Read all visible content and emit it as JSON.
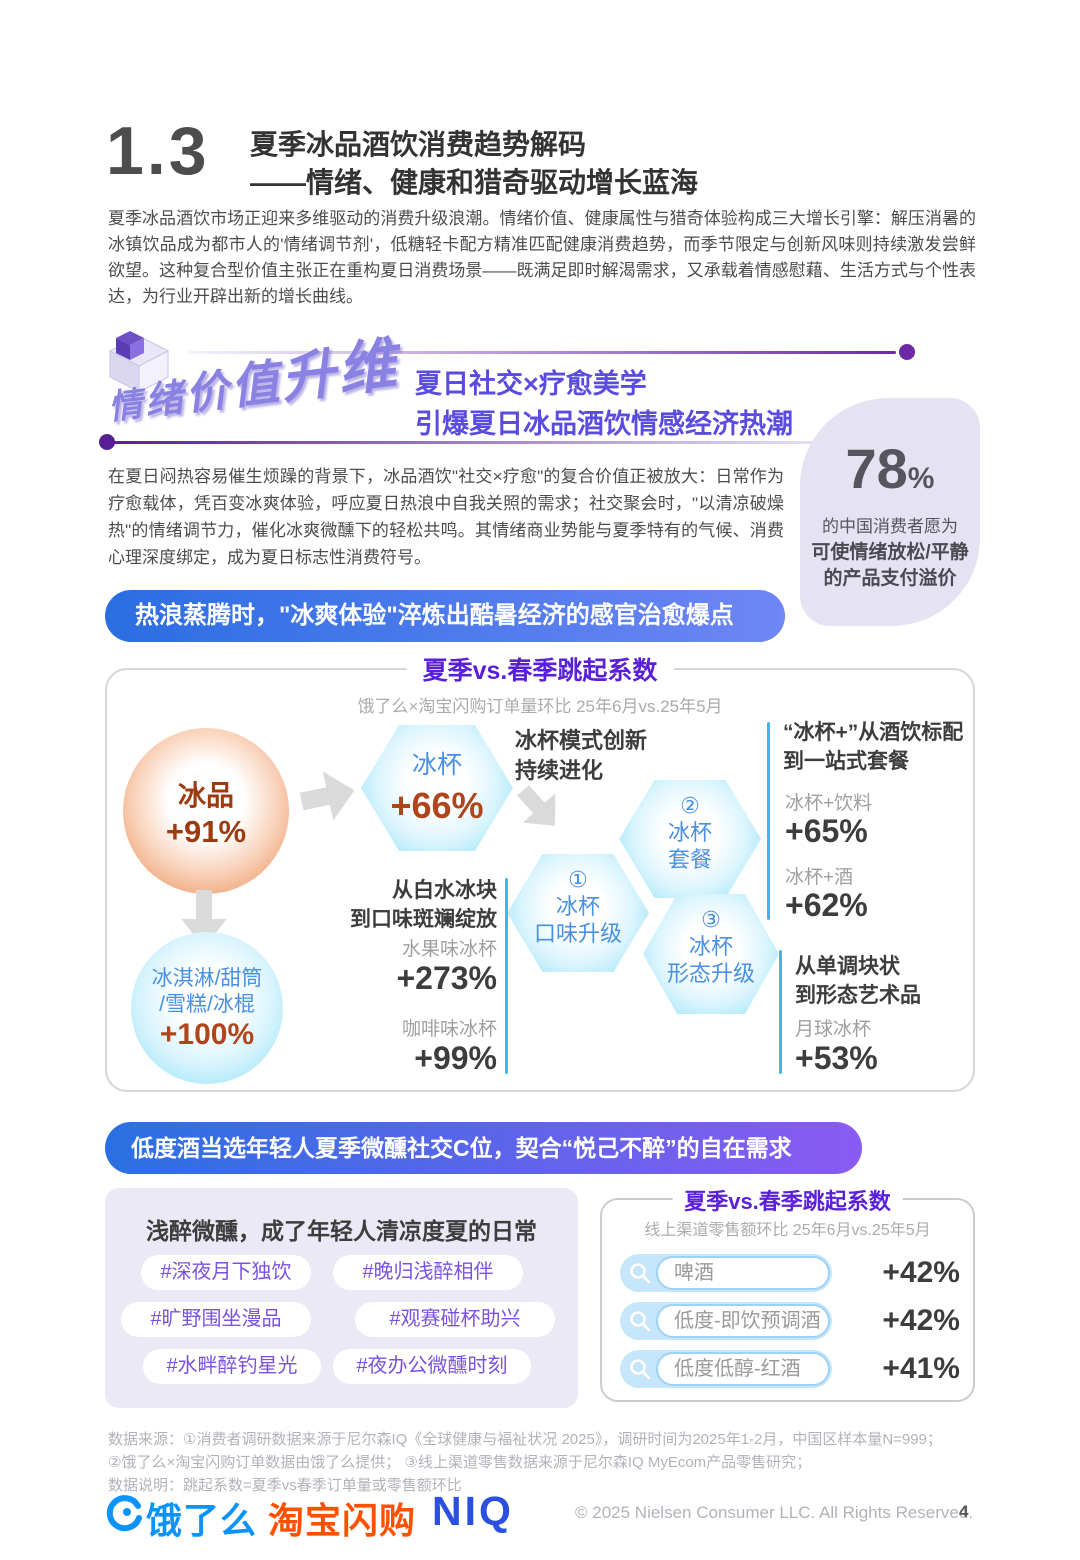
{
  "header": {
    "section_no": "1.3",
    "title_line1": "夏季冰品酒饮消费趋势解码",
    "title_line2": "——情绪、健康和猎奇驱动增长蓝海",
    "intro": "夏季冰品酒饮市场正迎来多维驱动的消费升级浪潮。情绪价值、健康属性与猎奇体验构成三大增长引擎：解压消暑的冰镇饮品成为都市人的'情绪调节剂'，低糖轻卡配方精准匹配健康消费趋势，而季节限定与创新风味则持续激发尝鲜欲望。这种复合型价值主张正在重构夏日消费场景——既满足即时解渴需求，又承载着情感慰藉、生活方式与个性表达，为行业开辟出新的增长曲线。"
  },
  "emotion_section": {
    "badge": "情绪价值升维",
    "subtitle_line1": "夏日社交×疗愈美学",
    "subtitle_line2": "引爆夏日冰品酒饮情感经济热潮",
    "body": "在夏日闷热容易催生烦躁的背景下，冰品酒饮\"社交×疗愈\"的复合价值正被放大：日常作为疗愈载体，凭百变冰爽体验，呼应夏日热浪中自我关照的需求；社交聚会时，\"以清凉破燥热\"的情绪调节力，催化冰爽微醺下的轻松共鸣。其情绪商业势能与夏季特有的气候、消费心理深度绑定，成为夏日标志性消费符号。",
    "stat": {
      "value": "78",
      "unit": "%",
      "line1": "的中国消费者愿为",
      "line2": "可使情绪放松/平静",
      "line3": "的产品支付溢价"
    }
  },
  "banner1": "热浪蒸腾时，\"冰爽体验\"淬炼出酷暑经济的感官治愈爆点",
  "jump_chart": {
    "title": "夏季vs.春季跳起系数",
    "subtitle": "饿了么×淘宝闪购订单量环比 25年6月vs.25年5月",
    "ice_products": {
      "label": "冰品",
      "value": "+91%"
    },
    "ice_cup": {
      "label": "冰杯",
      "value": "+66%"
    },
    "ice_cream": {
      "label_line1": "冰淇淋/甜筒",
      "label_line2": "/雪糕/冰棍",
      "value": "+100%"
    },
    "mode_title_line1": "冰杯模式创新",
    "mode_title_line2": "持续进化",
    "hex1": {
      "num": "①",
      "line1": "冰杯",
      "line2": "口味升级"
    },
    "hex2": {
      "num": "②",
      "line1": "冰杯",
      "line2": "套餐"
    },
    "hex3": {
      "num": "③",
      "line1": "冰杯",
      "line2": "形态升级"
    },
    "flavor_block": {
      "title_line1": "从白水冰块",
      "title_line2": "到口味斑斓绽放",
      "items": [
        {
          "label": "水果味冰杯",
          "value": "+273%"
        },
        {
          "label": "咖啡味冰杯",
          "value": "+99%"
        }
      ]
    },
    "combo_block": {
      "title_line1": "“冰杯+”从酒饮标配",
      "title_line2": "到一站式套餐",
      "items": [
        {
          "label": "冰杯+饮料",
          "value": "+65%"
        },
        {
          "label": "冰杯+酒",
          "value": "+62%"
        }
      ]
    },
    "shape_block": {
      "title_line1": "从单调块状",
      "title_line2": "到形态艺术品",
      "items": [
        {
          "label": "月球冰杯",
          "value": "+53%"
        }
      ]
    }
  },
  "banner2": "低度酒当选年轻人夏季微醺社交C位，契合“悦己不醉”的自在需求",
  "leftbox": {
    "title": "浅醉微醺，成了年轻人清凉度夏的日常",
    "tags": [
      "#深夜月下独饮",
      "#晚归浅醉相伴",
      "#旷野围坐漫品",
      "#观赛碰杯助兴",
      "#水畔醉钓星光",
      "#夜办公微醺时刻"
    ]
  },
  "rightbox": {
    "title": "夏季vs.春季跳起系数",
    "subtitle": "线上渠道零售额环比 25年6月vs.25年5月",
    "rows": [
      {
        "label": "啤酒",
        "value": "+42%"
      },
      {
        "label": "低度-即饮预调酒",
        "value": "+42%"
      },
      {
        "label": "低度低醇-红酒",
        "value": "+41%"
      }
    ]
  },
  "footer": {
    "line1": "数据来源：①消费者调研数据来源于尼尔森IQ《全球健康与福祉状况 2025》，调研时间为2025年1-2月，中国区样本量N=999；",
    "line2": "②饿了么×淘宝闪购订单数据由饿了么提供； ③线上渠道零售数据来源于尼尔森IQ MyEcom产品零售研究；",
    "line3": "数据说明：跳起系数=夏季vs春季订单量或零售额环比",
    "logo_eleme": "饿了么",
    "logo_taobao": "淘宝闪购",
    "logo_niq": "NIQ",
    "copyright": "© 2025 Nielsen Consumer LLC. All Rights Reserved.",
    "page": "4"
  },
  "colors": {
    "accent_purple": "#5a1fd8",
    "banner_blue": "#2a6ee2",
    "hex_blue": "#89ddf8",
    "orange_circle": "#e98f5d",
    "value_rust": "#b0451c"
  }
}
